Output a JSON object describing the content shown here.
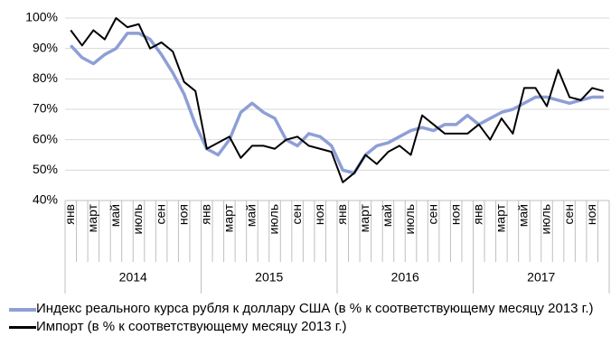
{
  "chart_data": {
    "type": "line",
    "categories": [
      "янв",
      null,
      "март",
      null,
      "май",
      null,
      "июль",
      null,
      "сен",
      null,
      "ноя",
      null,
      "янв",
      null,
      "март",
      null,
      "май",
      null,
      "июль",
      null,
      "сен",
      null,
      "ноя",
      null,
      "янв",
      null,
      "март",
      null,
      "май",
      null,
      "июль",
      null,
      "сен",
      null,
      "ноя",
      null,
      "янв",
      null,
      "март",
      null,
      "май",
      null,
      "июль",
      null,
      "сен",
      null,
      "ноя",
      null
    ],
    "groups": [
      "2014",
      "2015",
      "2016",
      "2017"
    ],
    "series": [
      {
        "name": "Индекс реального курса рубля к доллару США (в % к соответствующему месяцу 2013 г.)",
        "color": "#8e9fd6",
        "values": [
          91,
          87,
          85,
          88,
          90,
          95,
          95,
          93,
          88,
          82,
          75,
          65,
          57,
          55,
          60,
          69,
          72,
          69,
          67,
          60,
          58,
          62,
          61,
          58,
          50,
          49,
          55,
          58,
          59,
          61,
          63,
          64,
          63,
          65,
          65,
          68,
          65,
          67,
          69,
          70,
          72,
          74,
          74,
          73,
          72,
          73,
          74,
          74
        ]
      },
      {
        "name": "Импорт (в % к соответствующему месяцу 2013 г.)",
        "color": "#000000",
        "values": [
          96,
          91,
          96,
          93,
          100,
          97,
          98,
          90,
          92,
          89,
          79,
          76,
          57,
          59,
          61,
          54,
          58,
          58,
          57,
          60,
          61,
          58,
          57,
          56,
          46,
          49,
          55,
          52,
          56,
          58,
          55,
          68,
          65,
          62,
          62,
          62,
          65,
          60,
          67,
          62,
          77,
          77,
          71,
          83,
          74,
          73,
          77,
          76
        ]
      }
    ],
    "ylim": [
      40,
      100
    ],
    "yticks": [
      {
        "value": 40,
        "label": "40%"
      },
      {
        "value": 50,
        "label": "50%"
      },
      {
        "value": 60,
        "label": "60%"
      },
      {
        "value": 70,
        "label": "70%"
      },
      {
        "value": 80,
        "label": "80%"
      },
      {
        "value": 90,
        "label": "90%"
      },
      {
        "value": 100,
        "label": "100%"
      }
    ],
    "grid": true
  }
}
